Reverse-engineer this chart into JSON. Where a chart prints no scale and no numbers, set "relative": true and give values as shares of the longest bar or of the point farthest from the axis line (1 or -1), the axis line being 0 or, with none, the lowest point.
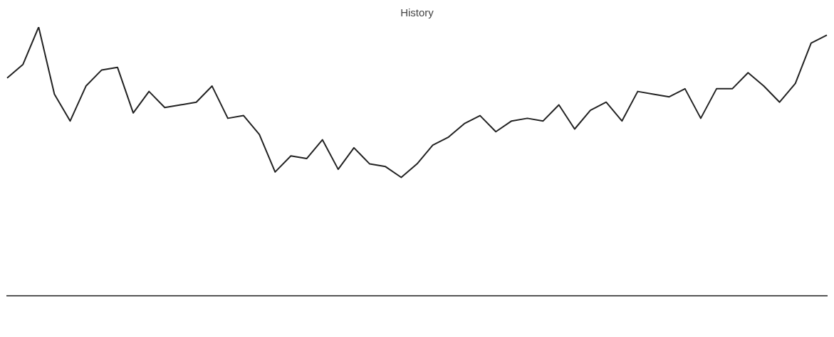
{
  "chart_data": {
    "type": "line",
    "title": "History",
    "relative": true,
    "categories": [
      null,
      null,
      null,
      null,
      null,
      null,
      null,
      null,
      null,
      null,
      null,
      null,
      null,
      null,
      null,
      null,
      null,
      null,
      null,
      null,
      null,
      null,
      null,
      null,
      null,
      null,
      null,
      null,
      null,
      null,
      null,
      null,
      null,
      null,
      null,
      null,
      null,
      null,
      null,
      null,
      null,
      null,
      null,
      null,
      null,
      null,
      null,
      null,
      null,
      null,
      null,
      null,
      null
    ],
    "series": [
      {
        "color": "#222222",
        "values": [
          0.81,
          0.86,
          1,
          0.75,
          0.65,
          0.78,
          0.84,
          0.85,
          0.68,
          0.76,
          0.7,
          0.71,
          0.72,
          0.78,
          0.66,
          0.67,
          0.6,
          0.46,
          0.52,
          0.51,
          0.58,
          0.47,
          0.55,
          0.49,
          0.48,
          0.44,
          0.49,
          0.56,
          0.59,
          0.64,
          0.67,
          0.61,
          0.65,
          0.66,
          0.65,
          0.71,
          0.62,
          0.69,
          0.72,
          0.65,
          0.76,
          0.75,
          0.74,
          0.77,
          0.66,
          0.77,
          0.77,
          0.83,
          0.78,
          0.72,
          0.79,
          0.94,
          0.97
        ]
      }
    ]
  }
}
